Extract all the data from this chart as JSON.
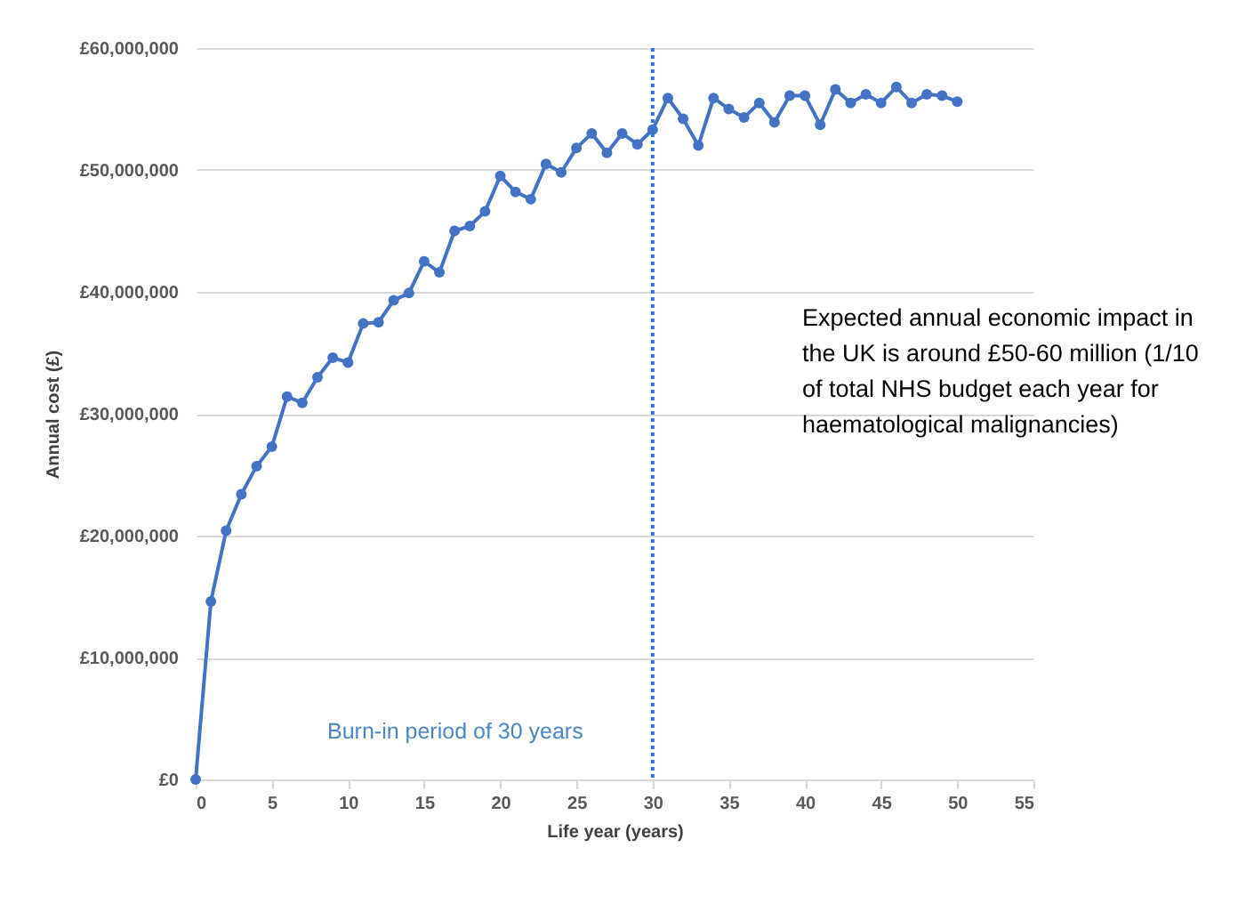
{
  "chart_data": {
    "type": "line",
    "xlabel": "Life year (years)",
    "ylabel": "Annual cost (£)",
    "x": [
      0,
      1,
      2,
      3,
      4,
      5,
      6,
      7,
      8,
      9,
      10,
      11,
      12,
      13,
      14,
      15,
      16,
      17,
      18,
      19,
      20,
      21,
      22,
      23,
      24,
      25,
      26,
      27,
      28,
      29,
      30,
      31,
      32,
      33,
      34,
      35,
      36,
      37,
      38,
      39,
      40,
      41,
      42,
      43,
      44,
      45,
      46,
      47,
      48,
      49,
      50
    ],
    "series": [
      {
        "color": "#4472c4",
        "values": [
          0,
          14600000,
          20400000,
          23400000,
          25700000,
          27300000,
          31400000,
          30900000,
          33000000,
          34600000,
          34200000,
          37400000,
          37500000,
          39300000,
          39900000,
          42500000,
          41600000,
          45000000,
          45400000,
          46600000,
          49500000,
          48200000,
          47600000,
          50500000,
          49800000,
          51800000,
          53000000,
          51400000,
          53000000,
          52100000,
          53300000,
          55900000,
          54200000,
          52000000,
          55900000,
          55000000,
          54300000,
          55500000,
          53900000,
          56100000,
          56100000,
          53700000,
          56600000,
          55500000,
          56200000,
          55500000,
          56800000,
          55500000,
          56200000,
          56100000,
          55600000
        ]
      }
    ],
    "xlim": [
      0,
      55
    ],
    "xticks": [
      0,
      5,
      10,
      15,
      20,
      25,
      30,
      35,
      40,
      45,
      50,
      55
    ],
    "ylim": [
      0,
      60000000
    ],
    "yticks": [
      {
        "value": 0,
        "label": "£0"
      },
      {
        "value": 10000000,
        "label": "£10,000,000"
      },
      {
        "value": 20000000,
        "label": "£20,000,000"
      },
      {
        "value": 30000000,
        "label": "£30,000,000"
      },
      {
        "value": 40000000,
        "label": "£40,000,000"
      },
      {
        "value": 50000000,
        "label": "£50,000,000"
      },
      {
        "value": 60000000,
        "label": "£60,000,000"
      }
    ],
    "grid": "y",
    "marker": "circle",
    "line_style": "solid",
    "ref_lines": [
      {
        "axis": "x",
        "value": 30,
        "color": "#2e75d6",
        "line_style": "dotted"
      }
    ],
    "annotations": [
      "Burn-in period of 30 years",
      "Expected annual economic impact in the UK is around £50-60 million (1/10 of total NHS budget each year for haematological malignancies)"
    ]
  }
}
